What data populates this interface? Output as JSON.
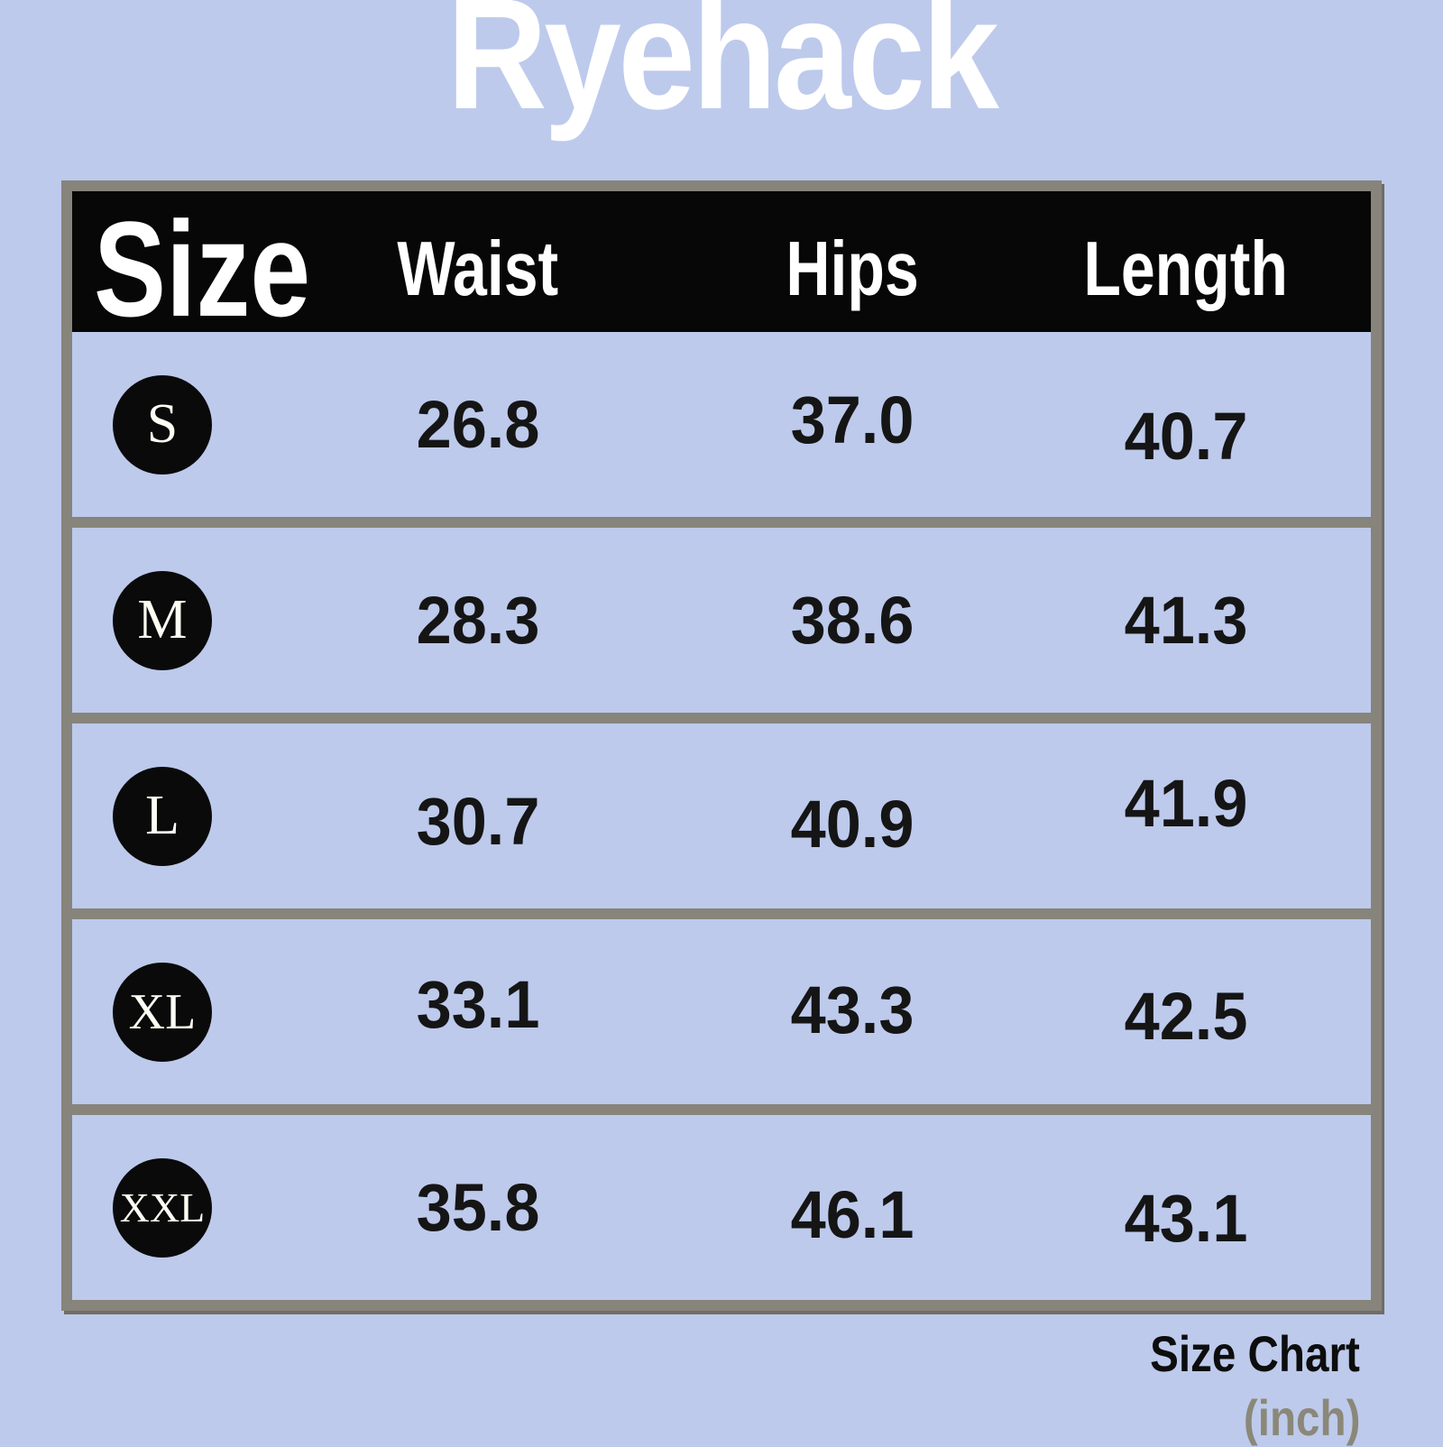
{
  "brand": "Ryehack",
  "footer": {
    "title": "Size Chart",
    "unit": "(inch)"
  },
  "colors": {
    "background": "#bdcaec",
    "header_background": "#070707",
    "header_text": "#ffffff",
    "table_border": "#87847b",
    "badge_background": "#0a0a0a",
    "badge_text": "#fffef5",
    "value_text": "#151515",
    "footer_unit_text": "#8b8879"
  },
  "chart_data": {
    "type": "table",
    "title": "Ryehack Size Chart",
    "unit": "inch",
    "columns": [
      "Size",
      "Waist",
      "Hips",
      "Length"
    ],
    "rows": [
      {
        "size": "S",
        "waist": "26.8",
        "hips": "37.0",
        "length": "40.7"
      },
      {
        "size": "M",
        "waist": "28.3",
        "hips": "38.6",
        "length": "41.3"
      },
      {
        "size": "L",
        "waist": "30.7",
        "hips": "40.9",
        "length": "41.9"
      },
      {
        "size": "XL",
        "waist": "33.1",
        "hips": "43.3",
        "length": "42.5"
      },
      {
        "size": "XXL",
        "waist": "35.8",
        "hips": "46.1",
        "length": "43.1"
      }
    ]
  }
}
